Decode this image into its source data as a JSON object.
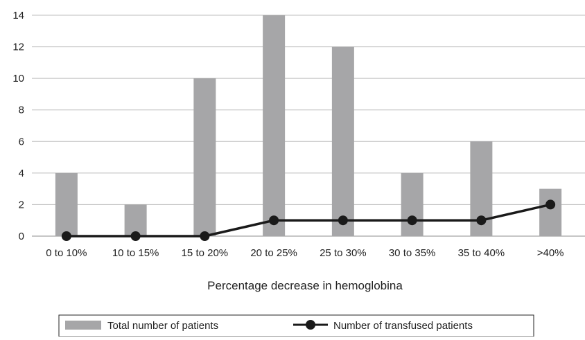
{
  "chart_data": {
    "type": "bar",
    "title": "",
    "xlabel": "Percentage decrease in hemoglobina",
    "ylabel": "",
    "ylim": [
      0,
      14
    ],
    "yticks": [
      0,
      2,
      4,
      6,
      8,
      10,
      12,
      14
    ],
    "grid": true,
    "legend_position": "bottom",
    "categories": [
      "0 to 10%",
      "10 to 15%",
      "15 to 20%",
      "20 to 25%",
      "25 to 30%",
      "30 to 35%",
      "35 to 40%",
      ">40%"
    ],
    "series": [
      {
        "name": "Total number of patients",
        "type": "bar",
        "color": "#a6a6a8",
        "values": [
          4,
          2,
          10,
          14,
          12,
          4,
          6,
          3
        ]
      },
      {
        "name": "Number of transfused patients",
        "type": "line",
        "color": "#1a1a1a",
        "values": [
          0,
          0,
          0,
          1,
          1,
          1,
          1,
          2
        ]
      }
    ]
  }
}
